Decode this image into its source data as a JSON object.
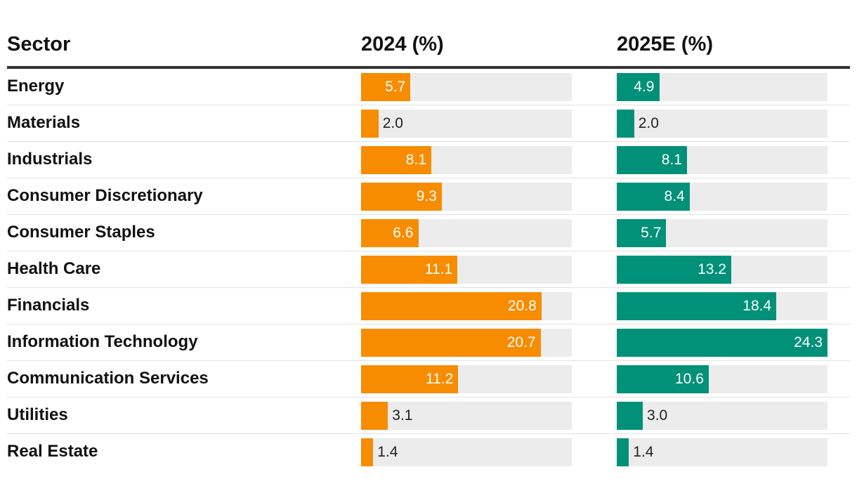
{
  "chart_data": {
    "type": "table",
    "headers": {
      "sector": "Sector",
      "col1": "2024 (%)",
      "col2": "2025E (%)"
    },
    "max_value": 24.3,
    "colors": {
      "col1": "#f78c00",
      "col2": "#009178",
      "track": "#ececec"
    },
    "rows": [
      {
        "sector": "Energy",
        "v2024": 5.7,
        "v2025": 4.9,
        "l2024": "5.7",
        "l2025": "4.9"
      },
      {
        "sector": "Materials",
        "v2024": 2.0,
        "v2025": 2.0,
        "l2024": "2.0",
        "l2025": "2.0"
      },
      {
        "sector": "Industrials",
        "v2024": 8.1,
        "v2025": 8.1,
        "l2024": "8.1",
        "l2025": "8.1"
      },
      {
        "sector": "Consumer Discretionary",
        "v2024": 9.3,
        "v2025": 8.4,
        "l2024": "9.3",
        "l2025": "8.4"
      },
      {
        "sector": "Consumer Staples",
        "v2024": 6.6,
        "v2025": 5.7,
        "l2024": "6.6",
        "l2025": "5.7"
      },
      {
        "sector": "Health Care",
        "v2024": 11.1,
        "v2025": 13.2,
        "l2024": "11.1",
        "l2025": "13.2"
      },
      {
        "sector": "Financials",
        "v2024": 20.8,
        "v2025": 18.4,
        "l2024": "20.8",
        "l2025": "18.4"
      },
      {
        "sector": "Information Technology",
        "v2024": 20.7,
        "v2025": 24.3,
        "l2024": "20.7",
        "l2025": "24.3"
      },
      {
        "sector": "Communication Services",
        "v2024": 11.2,
        "v2025": 10.6,
        "l2024": "11.2",
        "l2025": "10.6"
      },
      {
        "sector": "Utilities",
        "v2024": 3.1,
        "v2025": 3.0,
        "l2024": "3.1",
        "l2025": "3.0"
      },
      {
        "sector": "Real Estate",
        "v2024": 1.4,
        "v2025": 1.4,
        "l2024": "1.4",
        "l2025": "1.4"
      }
    ]
  }
}
